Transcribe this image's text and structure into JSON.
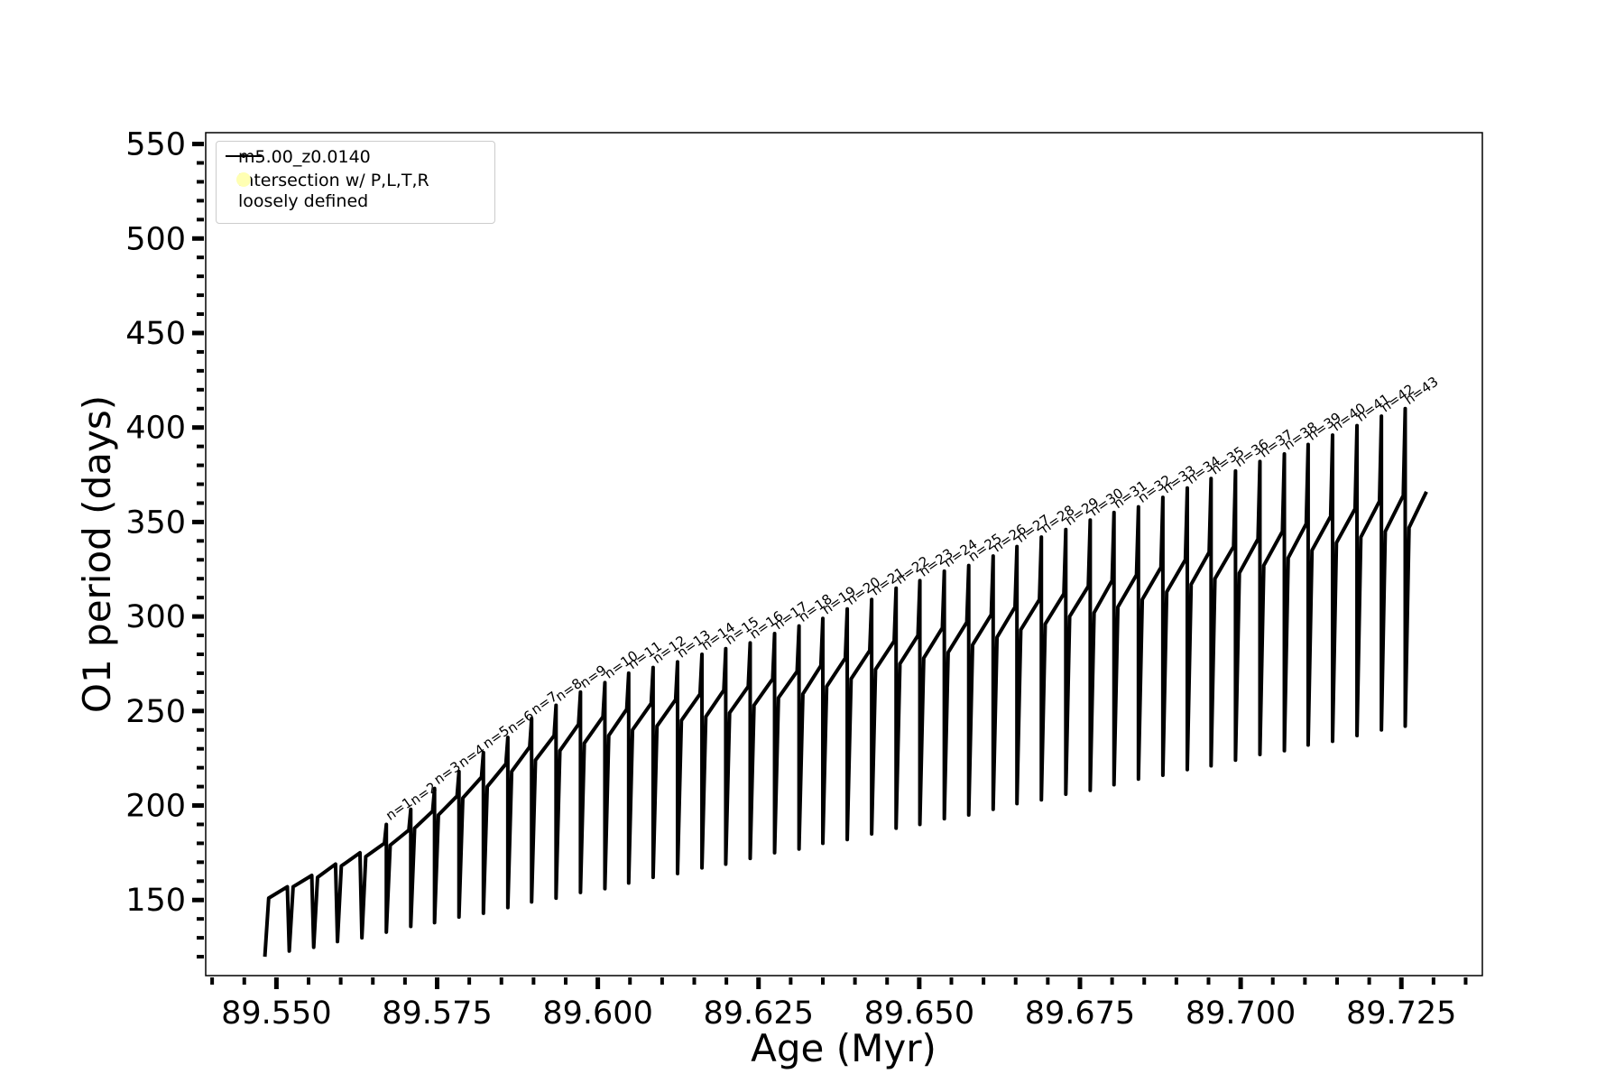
{
  "chart_data": {
    "type": "line",
    "xlabel": "Age (Myr)",
    "ylabel": "O1 period (days)",
    "xlim": [
      89.539,
      89.7376
    ],
    "ylim": [
      110,
      556
    ],
    "xticks": [
      {
        "value": 89.55,
        "label": "89.550"
      },
      {
        "value": 89.575,
        "label": "89.575"
      },
      {
        "value": 89.6,
        "label": "89.600"
      },
      {
        "value": 89.625,
        "label": "89.625"
      },
      {
        "value": 89.65,
        "label": "89.650"
      },
      {
        "value": 89.675,
        "label": "89.675"
      },
      {
        "value": 89.7,
        "label": "89.700"
      },
      {
        "value": 89.725,
        "label": "89.725"
      }
    ],
    "xminorticks": [
      89.54,
      89.545,
      89.555,
      89.56,
      89.565,
      89.57,
      89.58,
      89.585,
      89.59,
      89.595,
      89.605,
      89.61,
      89.615,
      89.62,
      89.63,
      89.635,
      89.64,
      89.645,
      89.655,
      89.66,
      89.665,
      89.67,
      89.68,
      89.685,
      89.69,
      89.695,
      89.705,
      89.71,
      89.715,
      89.72,
      89.73,
      89.735
    ],
    "yticks": [
      150,
      200,
      250,
      300,
      350,
      400,
      450,
      500,
      550
    ],
    "yminorticks": [
      120,
      130,
      140,
      160,
      170,
      180,
      190,
      210,
      220,
      230,
      240,
      260,
      270,
      280,
      290,
      310,
      320,
      330,
      340,
      360,
      370,
      380,
      390,
      410,
      420,
      430,
      440,
      460,
      470,
      480,
      490,
      510,
      520,
      530,
      540
    ],
    "legend": "upper left",
    "series": [
      {
        "name": "m5.00_z0.0140",
        "color": "#000000",
        "x": [
          89.5482,
          89.5488,
          89.5517,
          89.552,
          89.5526,
          89.5555,
          89.5558,
          89.5564,
          89.5592,
          89.5595,
          89.5601,
          89.563,
          89.5633,
          89.5639,
          89.5668,
          89.5671,
          89.5671,
          89.5677,
          89.5706,
          89.5709,
          89.5709,
          89.5715,
          89.5743,
          89.5746,
          89.5746,
          89.5752,
          89.5781,
          89.5784,
          89.5784,
          89.579,
          89.5819,
          89.5822,
          89.5822,
          89.5828,
          89.5857,
          89.586,
          89.586,
          89.5866,
          89.5894,
          89.5897,
          89.5897,
          89.5903,
          89.5932,
          89.5935,
          89.5935,
          89.5941,
          89.597,
          89.5973,
          89.5973,
          89.5979,
          89.6008,
          89.6011,
          89.6011,
          89.6017,
          89.6045,
          89.6048,
          89.6048,
          89.6054,
          89.6083,
          89.6086,
          89.6086,
          89.6092,
          89.6121,
          89.6124,
          89.6124,
          89.613,
          89.6159,
          89.6162,
          89.6162,
          89.6168,
          89.6196,
          89.6199,
          89.6199,
          89.6205,
          89.6234,
          89.6237,
          89.6237,
          89.6243,
          89.6272,
          89.6275,
          89.6275,
          89.6281,
          89.631,
          89.6313,
          89.6313,
          89.6319,
          89.6347,
          89.635,
          89.635,
          89.6356,
          89.6385,
          89.6388,
          89.6388,
          89.6394,
          89.6423,
          89.6426,
          89.6426,
          89.6432,
          89.6461,
          89.6464,
          89.6464,
          89.647,
          89.6498,
          89.6501,
          89.6501,
          89.6507,
          89.6536,
          89.6539,
          89.6539,
          89.6545,
          89.6574,
          89.6577,
          89.6577,
          89.6583,
          89.6612,
          89.6615,
          89.6615,
          89.6621,
          89.6649,
          89.6652,
          89.6652,
          89.6658,
          89.6687,
          89.669,
          89.669,
          89.6696,
          89.6725,
          89.6728,
          89.6728,
          89.6734,
          89.6763,
          89.6766,
          89.6766,
          89.6772,
          89.68,
          89.6803,
          89.6803,
          89.6809,
          89.6838,
          89.6841,
          89.6841,
          89.6847,
          89.6876,
          89.6879,
          89.6879,
          89.6885,
          89.6914,
          89.6917,
          89.6917,
          89.6923,
          89.6951,
          89.6954,
          89.6954,
          89.696,
          89.6989,
          89.6992,
          89.6992,
          89.6998,
          89.7027,
          89.703,
          89.703,
          89.7036,
          89.7065,
          89.7068,
          89.7068,
          89.7074,
          89.7102,
          89.7105,
          89.7105,
          89.7111,
          89.714,
          89.7143,
          89.7143,
          89.7149,
          89.7178,
          89.7181,
          89.7181,
          89.7187,
          89.7216,
          89.7219,
          89.7219,
          89.7225,
          89.7253,
          89.7256,
          89.7256,
          89.7262,
          89.7289
        ],
        "values": [
          120,
          151,
          157,
          123,
          157,
          163,
          125,
          162,
          169,
          128,
          168,
          175,
          130,
          173,
          180,
          190,
          133,
          179,
          187,
          198,
          136,
          188,
          197,
          209,
          138,
          195,
          205,
          218,
          141,
          204,
          215,
          228,
          143,
          210,
          222,
          236,
          146,
          218,
          231,
          246,
          149,
          224,
          237,
          253,
          151,
          229,
          243,
          260,
          154,
          233,
          247,
          265,
          156,
          237,
          251,
          270,
          159,
          240,
          254,
          273,
          162,
          242,
          256,
          276,
          164,
          245,
          259,
          280,
          167,
          247,
          261,
          283,
          169,
          249,
          263,
          286,
          172,
          253,
          267,
          291,
          175,
          257,
          271,
          295,
          177,
          259,
          274,
          299,
          180,
          263,
          278,
          304,
          182,
          267,
          282,
          309,
          185,
          272,
          287,
          315,
          188,
          275,
          290,
          319,
          190,
          278,
          294,
          324,
          193,
          281,
          297,
          327,
          195,
          285,
          301,
          332,
          198,
          289,
          305,
          337,
          201,
          293,
          309,
          342,
          203,
          296,
          312,
          346,
          206,
          300,
          316,
          351,
          208,
          302,
          319,
          355,
          211,
          305,
          322,
          358,
          214,
          309,
          326,
          363,
          216,
          313,
          330,
          368,
          219,
          317,
          334,
          373,
          221,
          320,
          337,
          377,
          224,
          323,
          341,
          382,
          227,
          327,
          345,
          386,
          229,
          331,
          349,
          391,
          232,
          335,
          353,
          396,
          234,
          339,
          357,
          401,
          237,
          342,
          361,
          406,
          240,
          345,
          364,
          410,
          242,
          347,
          366
        ]
      },
      {
        "name": "intersection w/ P,L,T,R\nloosely defined",
        "color": "#ffffb3",
        "type": "scatter",
        "x": [],
        "values": []
      }
    ],
    "annotations": [
      {
        "text": "n=1",
        "x": 89.5671,
        "y": 190
      },
      {
        "text": "n=2",
        "x": 89.5709,
        "y": 198
      },
      {
        "text": "n=3",
        "x": 89.5746,
        "y": 209
      },
      {
        "text": "n=4",
        "x": 89.5784,
        "y": 218
      },
      {
        "text": "n=5",
        "x": 89.5822,
        "y": 228
      },
      {
        "text": "n=6",
        "x": 89.586,
        "y": 236
      },
      {
        "text": "n=7",
        "x": 89.5897,
        "y": 246
      },
      {
        "text": "n=8",
        "x": 89.5935,
        "y": 253
      },
      {
        "text": "n=9",
        "x": 89.5973,
        "y": 260
      },
      {
        "text": "n=10",
        "x": 89.6011,
        "y": 265
      },
      {
        "text": "n=11",
        "x": 89.6048,
        "y": 270
      },
      {
        "text": "n=12",
        "x": 89.6086,
        "y": 273
      },
      {
        "text": "n=13",
        "x": 89.6124,
        "y": 276
      },
      {
        "text": "n=14",
        "x": 89.6162,
        "y": 280
      },
      {
        "text": "n=15",
        "x": 89.6199,
        "y": 283
      },
      {
        "text": "n=16",
        "x": 89.6237,
        "y": 286
      },
      {
        "text": "n=17",
        "x": 89.6275,
        "y": 291
      },
      {
        "text": "n=18",
        "x": 89.6313,
        "y": 295
      },
      {
        "text": "n=19",
        "x": 89.635,
        "y": 299
      },
      {
        "text": "n=20",
        "x": 89.6388,
        "y": 304
      },
      {
        "text": "n=21",
        "x": 89.6426,
        "y": 309
      },
      {
        "text": "n=22",
        "x": 89.6464,
        "y": 315
      },
      {
        "text": "n=23",
        "x": 89.6501,
        "y": 319
      },
      {
        "text": "n=24",
        "x": 89.6539,
        "y": 324
      },
      {
        "text": "n=25",
        "x": 89.6577,
        "y": 327
      },
      {
        "text": "n=26",
        "x": 89.6615,
        "y": 332
      },
      {
        "text": "n=27",
        "x": 89.6652,
        "y": 337
      },
      {
        "text": "n=28",
        "x": 89.669,
        "y": 342
      },
      {
        "text": "n=29",
        "x": 89.6728,
        "y": 346
      },
      {
        "text": "n=30",
        "x": 89.6766,
        "y": 351
      },
      {
        "text": "n=31",
        "x": 89.6803,
        "y": 355
      },
      {
        "text": "n=32",
        "x": 89.6841,
        "y": 358
      },
      {
        "text": "n=33",
        "x": 89.6879,
        "y": 363
      },
      {
        "text": "n=34",
        "x": 89.6917,
        "y": 368
      },
      {
        "text": "n=35",
        "x": 89.6954,
        "y": 373
      },
      {
        "text": "n=36",
        "x": 89.6992,
        "y": 377
      },
      {
        "text": "n=37",
        "x": 89.703,
        "y": 382
      },
      {
        "text": "n=38",
        "x": 89.7068,
        "y": 386
      },
      {
        "text": "n=39",
        "x": 89.7105,
        "y": 391
      },
      {
        "text": "n=40",
        "x": 89.7143,
        "y": 396
      },
      {
        "text": "n=41",
        "x": 89.7181,
        "y": 401
      },
      {
        "text": "n=42",
        "x": 89.7219,
        "y": 406
      },
      {
        "text": "n=43",
        "x": 89.7256,
        "y": 410
      }
    ]
  }
}
